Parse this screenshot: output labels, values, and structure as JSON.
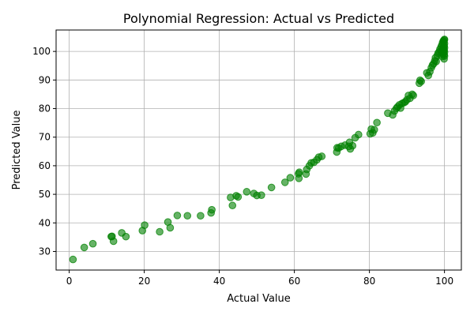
{
  "chart_data": {
    "type": "scatter",
    "title": "Polynomial Regression: Actual vs Predicted",
    "xlabel": "Actual Value",
    "ylabel": "Predicted Value",
    "xlim": [
      -3.5,
      104.5
    ],
    "ylim": [
      23.5,
      107.5
    ],
    "xticks": [
      0,
      20,
      40,
      60,
      80,
      100
    ],
    "yticks": [
      30,
      40,
      50,
      60,
      70,
      80,
      90,
      100
    ],
    "grid": true,
    "colors": {
      "points": "#008000",
      "grid": "#b0b0b0",
      "axes": "#000000"
    },
    "points": [
      [
        1,
        27.2
      ],
      [
        4,
        31.4
      ],
      [
        6.3,
        32.7
      ],
      [
        11.2,
        35.2
      ],
      [
        11.4,
        35.3
      ],
      [
        11.8,
        33.6
      ],
      [
        14,
        36.5
      ],
      [
        15.1,
        35.2
      ],
      [
        19.5,
        37.3
      ],
      [
        20.1,
        39.2
      ],
      [
        24.1,
        36.9
      ],
      [
        26.3,
        40.3
      ],
      [
        26.9,
        38.3
      ],
      [
        28.8,
        42.6
      ],
      [
        31.5,
        42.5
      ],
      [
        35,
        42.5
      ],
      [
        37.8,
        43.5
      ],
      [
        38,
        44.6
      ],
      [
        43,
        48.9
      ],
      [
        43.5,
        46.1
      ],
      [
        44.5,
        49.5
      ],
      [
        45,
        49.1
      ],
      [
        47.3,
        50.9
      ],
      [
        49.2,
        50.3
      ],
      [
        50,
        49.6
      ],
      [
        51.2,
        49.7
      ],
      [
        53.9,
        52.4
      ],
      [
        57.5,
        54.2
      ],
      [
        58.9,
        55.8
      ],
      [
        61.1,
        57.2
      ],
      [
        61.2,
        55.6
      ],
      [
        61.3,
        57.7
      ],
      [
        63.1,
        57.1
      ],
      [
        63.3,
        58.7
      ],
      [
        64,
        60
      ],
      [
        64.5,
        61
      ],
      [
        65.2,
        61.2
      ],
      [
        66,
        62.1
      ],
      [
        66.5,
        63
      ],
      [
        67.3,
        63.3
      ],
      [
        71.3,
        64.8
      ],
      [
        71.4,
        66.3
      ],
      [
        71.8,
        66.2
      ],
      [
        72.5,
        66.8
      ],
      [
        73.5,
        67.2
      ],
      [
        74.5,
        66.8
      ],
      [
        74.7,
        68.2
      ],
      [
        74.9,
        65.9
      ],
      [
        75.5,
        67
      ],
      [
        76.2,
        69.8
      ],
      [
        77.1,
        70.9
      ],
      [
        80.2,
        71.2
      ],
      [
        80.5,
        72.8
      ],
      [
        80.9,
        71.5
      ],
      [
        81.3,
        72.6
      ],
      [
        82,
        75.1
      ],
      [
        84.9,
        78.4
      ],
      [
        86.2,
        77.8
      ],
      [
        86.7,
        79.2
      ],
      [
        87.2,
        80.1
      ],
      [
        87.5,
        80.6
      ],
      [
        88,
        81.3
      ],
      [
        88.3,
        80.2
      ],
      [
        88.7,
        81.8
      ],
      [
        89.2,
        82.1
      ],
      [
        89.6,
        82.4
      ],
      [
        90,
        83.1
      ],
      [
        90.4,
        84.6
      ],
      [
        90.8,
        83.6
      ],
      [
        91.4,
        85
      ],
      [
        91.7,
        84.6
      ],
      [
        93.3,
        88.9
      ],
      [
        93.5,
        89.9
      ],
      [
        93.8,
        89.5
      ],
      [
        95.3,
        92.5
      ],
      [
        95.7,
        91.6
      ],
      [
        96.1,
        92.9
      ],
      [
        96.5,
        94.3
      ],
      [
        96.8,
        95.2
      ],
      [
        97.1,
        95.7
      ],
      [
        97.4,
        96.7
      ],
      [
        97.6,
        97.8
      ],
      [
        97.8,
        96.5
      ],
      [
        98.1,
        98.6
      ],
      [
        98.3,
        99.4
      ],
      [
        98.6,
        99.9
      ],
      [
        98.8,
        100.8
      ],
      [
        99.1,
        101.6
      ],
      [
        99.3,
        102.2
      ],
      [
        99.5,
        103.1
      ],
      [
        99.7,
        103.7
      ],
      [
        99.8,
        100.1
      ],
      [
        99.9,
        97.4
      ],
      [
        100,
        104.2
      ],
      [
        100,
        102.8
      ],
      [
        100,
        101.3
      ],
      [
        100,
        99.8
      ],
      [
        100,
        98.4
      ],
      [
        99.9,
        104
      ],
      [
        99.9,
        102
      ],
      [
        99.9,
        100.5
      ],
      [
        99.9,
        98.9
      ],
      [
        99.8,
        103.4
      ],
      [
        99.8,
        101.7
      ],
      [
        99.7,
        99.3
      ],
      [
        99.6,
        100.9
      ],
      [
        99.4,
        98.2
      ],
      [
        99.2,
        99.6
      ]
    ]
  }
}
